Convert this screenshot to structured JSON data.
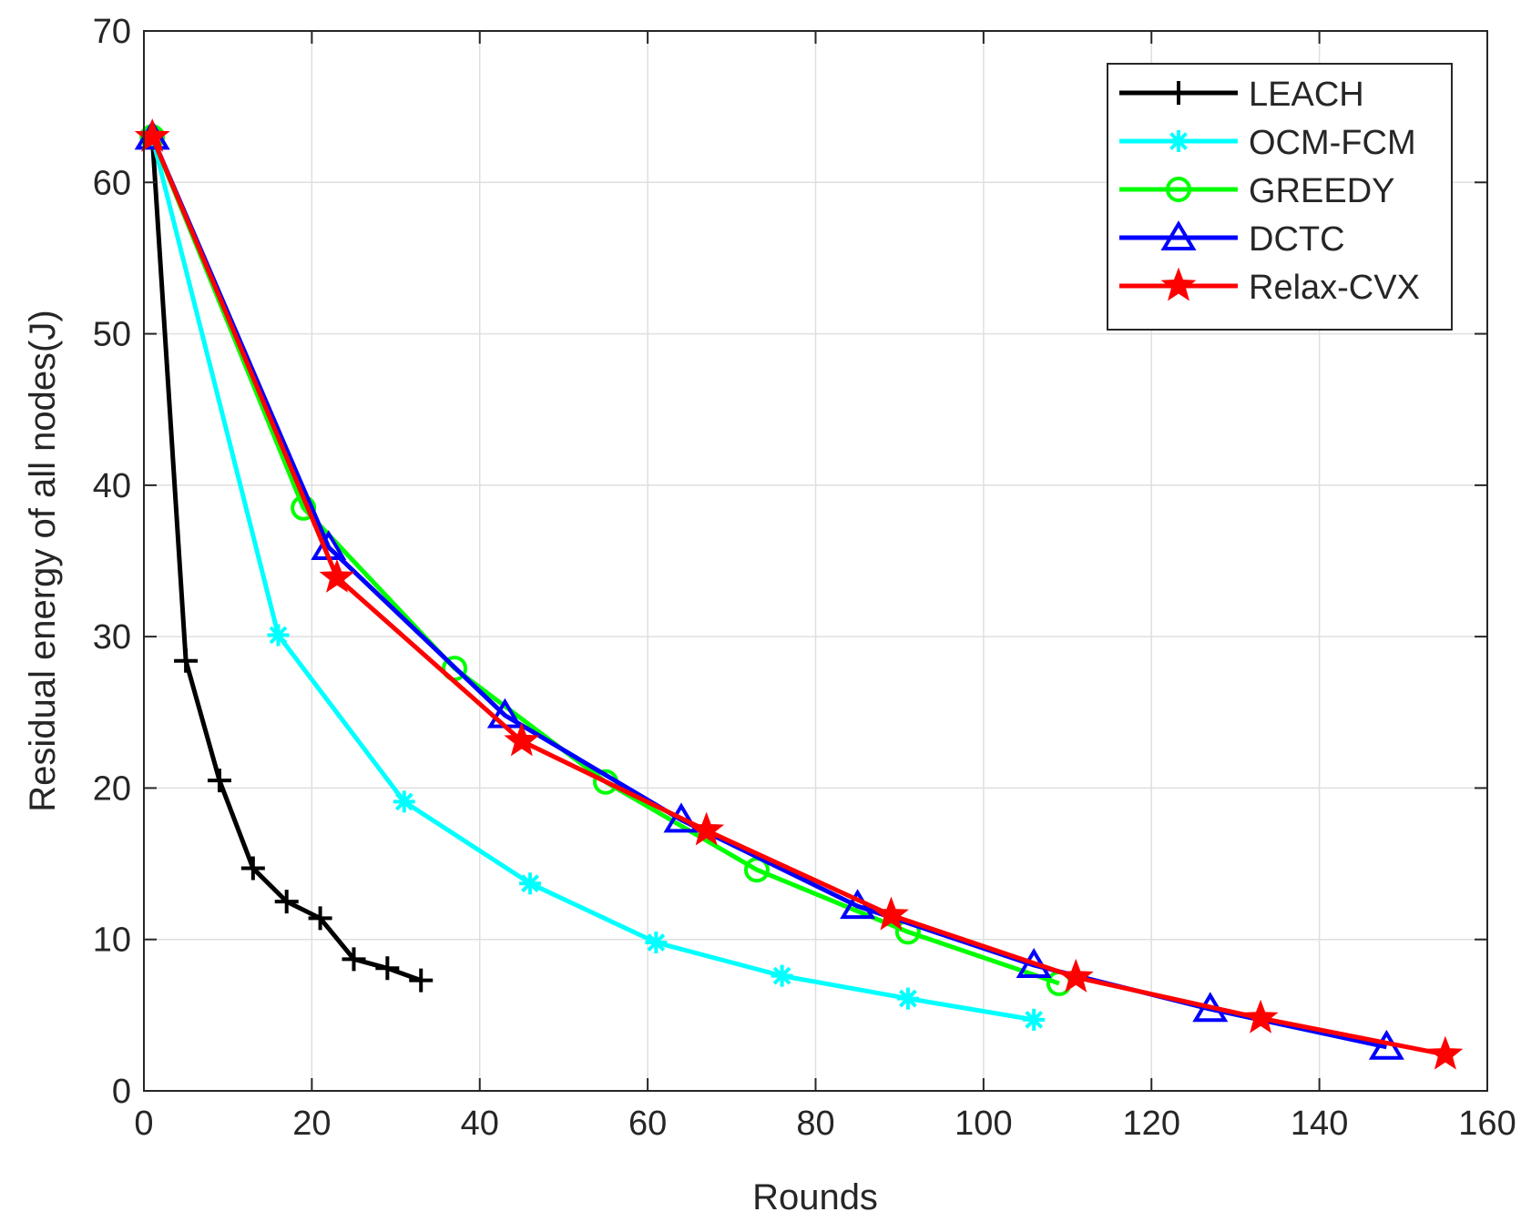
{
  "chart_data": {
    "type": "line",
    "title": "",
    "xlabel": "Rounds",
    "ylabel": "Residual energy of all nodes(J)",
    "xlim": [
      0,
      160
    ],
    "ylim": [
      0,
      70
    ],
    "xticks": [
      0,
      20,
      40,
      60,
      80,
      100,
      120,
      140,
      160
    ],
    "yticks": [
      0,
      10,
      20,
      30,
      40,
      50,
      60,
      70
    ],
    "grid": true,
    "legend_position": "top-right",
    "series": [
      {
        "name": "LEACH",
        "color": "#000000",
        "marker": "plus",
        "x": [
          1,
          5,
          9,
          13,
          17,
          21,
          25,
          29,
          33
        ],
        "y": [
          63,
          28.4,
          20.5,
          14.7,
          12.5,
          11.4,
          8.7,
          8.1,
          7.3
        ]
      },
      {
        "name": "OCM-FCM",
        "color": "#00ffff",
        "marker": "asterisk",
        "x": [
          1,
          16,
          31,
          46,
          61,
          76,
          91,
          106
        ],
        "y": [
          63,
          30.1,
          19.1,
          13.7,
          9.8,
          7.6,
          6.1,
          4.7
        ]
      },
      {
        "name": "GREEDY",
        "color": "#00ff00",
        "marker": "circle",
        "x": [
          1,
          19,
          37,
          55,
          73,
          91,
          109
        ],
        "y": [
          63,
          38.5,
          27.9,
          20.4,
          14.6,
          10.5,
          7.1
        ]
      },
      {
        "name": "DCTC",
        "color": "#0000ff",
        "marker": "triangle",
        "x": [
          1,
          22,
          43,
          64,
          85,
          106,
          127,
          148
        ],
        "y": [
          63,
          35.9,
          24.8,
          17.9,
          12.2,
          8.3,
          5.4,
          2.9
        ]
      },
      {
        "name": "Relax-CVX",
        "color": "#ff0000",
        "marker": "star",
        "x": [
          1,
          23,
          45,
          67,
          89,
          111,
          133,
          155
        ],
        "y": [
          63,
          33.9,
          23.1,
          17.2,
          11.6,
          7.5,
          4.8,
          2.4
        ]
      }
    ]
  }
}
